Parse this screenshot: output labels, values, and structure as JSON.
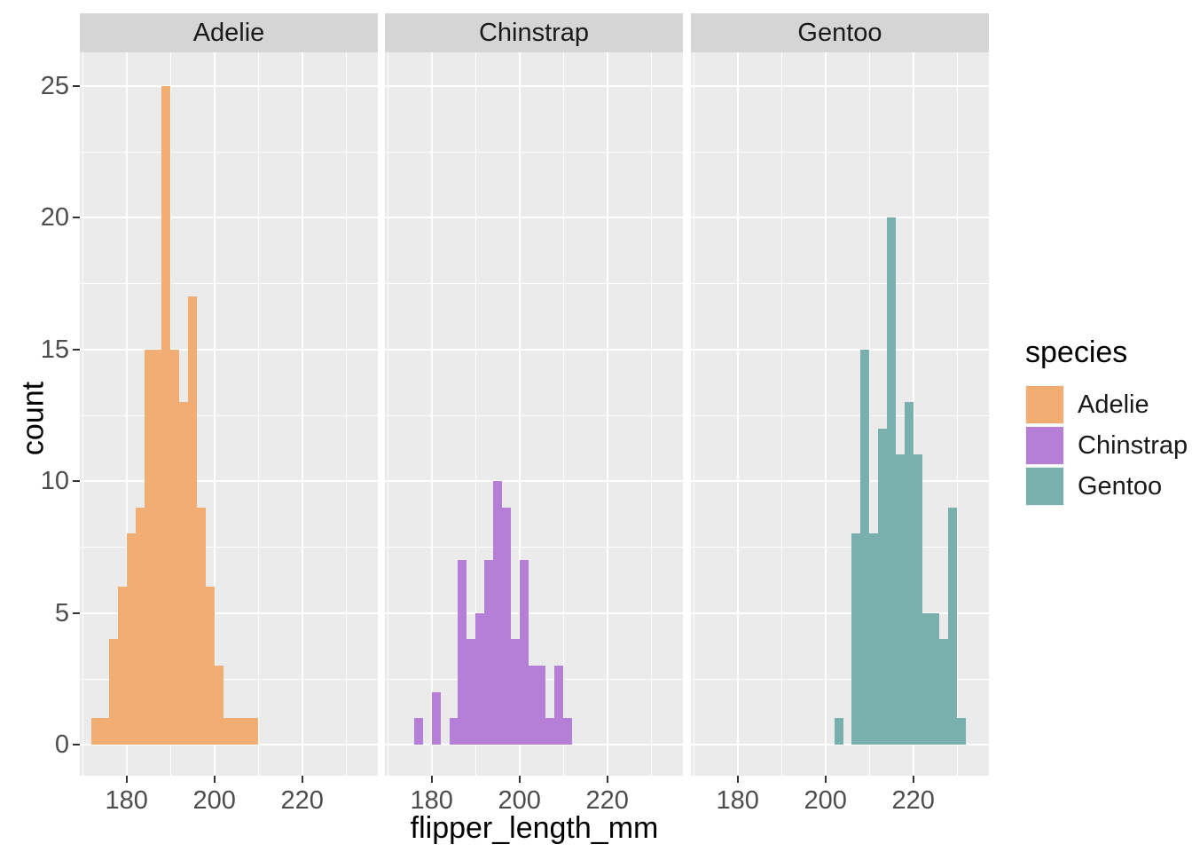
{
  "chart_data": {
    "type": "bar",
    "subtype": "faceted-histogram",
    "title": "",
    "xlabel": "flipper_length_mm",
    "ylabel": "count",
    "bin_width": 2,
    "xlim": [
      169.35,
      237.2
    ],
    "ylim": [
      0,
      26.4
    ],
    "x_major_ticks": [
      180,
      200,
      220
    ],
    "x_minor_gridlines": [
      170,
      190,
      210,
      230
    ],
    "y_major_ticks": [
      0,
      5,
      10,
      15,
      20,
      25
    ],
    "y_minor_gridlines": [
      2.5,
      7.5,
      12.5,
      17.5,
      22.5
    ],
    "grid": true,
    "legend_position": "right",
    "facets": [
      {
        "label": "Adelie",
        "color": "#F2AE72",
        "bins": [
          [
            172,
            1
          ],
          [
            174,
            1
          ],
          [
            176,
            4
          ],
          [
            178,
            6
          ],
          [
            180,
            8
          ],
          [
            182,
            9
          ],
          [
            184,
            15
          ],
          [
            186,
            15
          ],
          [
            188,
            25
          ],
          [
            190,
            15
          ],
          [
            192,
            13
          ],
          [
            194,
            17
          ],
          [
            196,
            9
          ],
          [
            198,
            6
          ],
          [
            200,
            3
          ],
          [
            202,
            1
          ],
          [
            204,
            1
          ],
          [
            206,
            1
          ],
          [
            208,
            1
          ]
        ]
      },
      {
        "label": "Chinstrap",
        "color": "#B67FD7",
        "bins": [
          [
            176,
            1
          ],
          [
            180,
            2
          ],
          [
            184,
            1
          ],
          [
            186,
            7
          ],
          [
            188,
            4
          ],
          [
            190,
            5
          ],
          [
            192,
            7
          ],
          [
            194,
            10
          ],
          [
            196,
            9
          ],
          [
            198,
            4
          ],
          [
            200,
            7
          ],
          [
            202,
            3
          ],
          [
            204,
            3
          ],
          [
            206,
            1
          ],
          [
            208,
            3
          ],
          [
            210,
            1
          ]
        ]
      },
      {
        "label": "Gentoo",
        "color": "#79AFAD",
        "bins": [
          [
            202,
            1
          ],
          [
            206,
            8
          ],
          [
            208,
            15
          ],
          [
            210,
            8
          ],
          [
            212,
            12
          ],
          [
            214,
            20
          ],
          [
            216,
            11
          ],
          [
            218,
            13
          ],
          [
            220,
            11
          ],
          [
            222,
            5
          ],
          [
            224,
            5
          ],
          [
            226,
            4
          ],
          [
            228,
            9
          ],
          [
            230,
            1
          ]
        ]
      }
    ]
  },
  "legend": {
    "title": "species",
    "entries": [
      {
        "label": "Adelie",
        "color": "#F2AE72"
      },
      {
        "label": "Chinstrap",
        "color": "#B67FD7"
      },
      {
        "label": "Gentoo",
        "color": "#79AFAD"
      }
    ]
  },
  "style_colors": {
    "panel_background": "#EBEBEB",
    "strip_background": "#D5D5D5",
    "gridline": "#FFFFFF",
    "axis_text": "#4D4D4D",
    "tick_mark": "#333333"
  }
}
